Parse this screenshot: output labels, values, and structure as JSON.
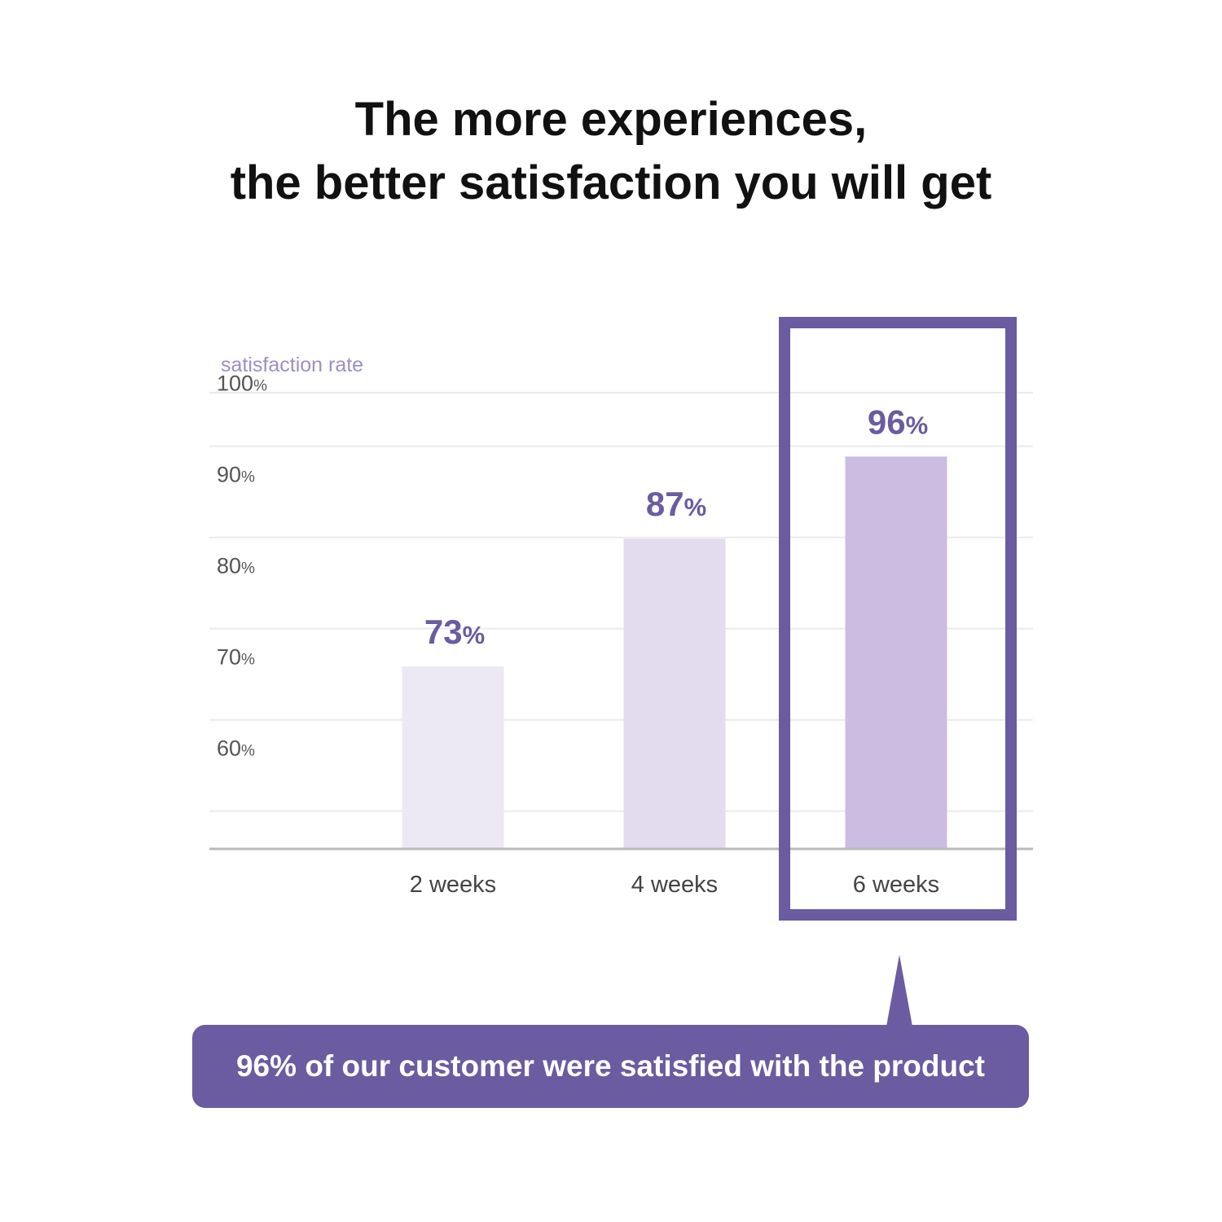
{
  "headline": {
    "line1": "The more experiences,",
    "line2": "the better satisfaction you will get"
  },
  "chart_data": {
    "type": "bar",
    "ylabel": "satisfaction rate",
    "ylim": [
      53,
      103
    ],
    "yticks": [
      {
        "value": 100,
        "num": "100",
        "unit": "%"
      },
      {
        "value": 90,
        "num": "90",
        "unit": "%"
      },
      {
        "value": 80,
        "num": "80",
        "unit": "%"
      },
      {
        "value": 70,
        "num": "70",
        "unit": "%"
      },
      {
        "value": 60,
        "num": "60",
        "unit": "%"
      }
    ],
    "categories": [
      "2 weeks",
      "4 weeks",
      "6 weeks"
    ],
    "values": [
      73,
      87,
      96
    ],
    "value_labels": [
      {
        "num": "73",
        "unit": "%"
      },
      {
        "num": "87",
        "unit": "%"
      },
      {
        "num": "96",
        "unit": "%"
      }
    ],
    "bar_colors": [
      "#ece8f4",
      "#e3dcef",
      "#cbbce1"
    ],
    "highlight_category": "6 weeks",
    "grid": true,
    "colors": {
      "accent": "#6b5ba0",
      "ylabel": "#9d8fc4",
      "value_label": "#6b5ba0",
      "tick_label": "#555555",
      "category_label": "#444444",
      "gridline": "#ebebeb",
      "baseline": "#bbbbbb"
    }
  },
  "callout": {
    "text": "96% of our customer were satisfied with the product"
  }
}
